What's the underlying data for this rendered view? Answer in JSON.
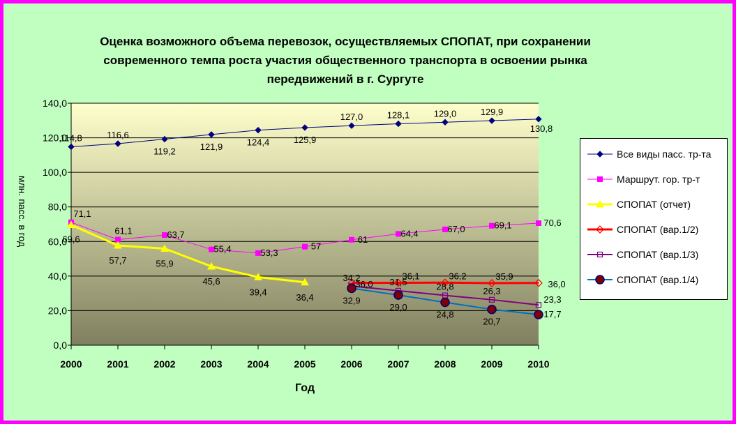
{
  "title_lines": [
    "Оценка возможного объема перевозок, осуществляемых СПОПАТ, при сохранении",
    "современного темпа роста участия общественного транспорта в освоении рынка",
    "передвижений в г. Сургуте"
  ],
  "colors": {
    "border": "#ff00ff",
    "chart_bg": "#c0ffc0",
    "plot_top": "#ffffcc",
    "plot_bottom": "#808060"
  },
  "chart_data": {
    "type": "line",
    "xlabel": "Год",
    "ylabel": "млн. пасс. в год",
    "ylim": [
      0,
      140
    ],
    "yticks": [
      "0,0",
      "20,0",
      "40,0",
      "60,0",
      "80,0",
      "100,0",
      "120,0",
      "140,0"
    ],
    "categories": [
      "2000",
      "2001",
      "2002",
      "2003",
      "2004",
      "2005",
      "2006",
      "2007",
      "2008",
      "2009",
      "2010"
    ],
    "grid": true,
    "legend_position": "right",
    "series": [
      {
        "name": "Все виды пасс. тр-та",
        "color": "#000080",
        "marker": "diamond",
        "width": 1,
        "values": [
          114.8,
          116.6,
          119.2,
          121.9,
          124.4,
          125.9,
          127.0,
          128.1,
          129.0,
          129.9,
          130.8
        ],
        "labels": [
          "114,8",
          "116,6",
          "119,2",
          "121,9",
          "124,4",
          "125,9",
          "127,0",
          "128,1",
          "129,0",
          "129,9",
          "130,8"
        ]
      },
      {
        "name": "Маршрут. гор. тр-т",
        "color": "#ff00ff",
        "marker": "square",
        "width": 1,
        "values": [
          71.1,
          61.1,
          63.7,
          55.4,
          53.3,
          57.0,
          61.0,
          64.4,
          67.0,
          69.1,
          70.6
        ],
        "labels": [
          "71,1",
          "61,1",
          "63,7",
          "55,4",
          "53,3",
          "57",
          "61",
          "64,4",
          "67,0",
          "69,1",
          "70,6"
        ]
      },
      {
        "name": "СПОПАТ (отчет)",
        "color": "#ffff00",
        "marker": "triangle",
        "width": 3,
        "values": [
          69.6,
          57.7,
          55.9,
          45.6,
          39.4,
          36.4,
          null,
          null,
          null,
          null,
          null
        ],
        "labels": [
          "69,6",
          "57,7",
          "55,9",
          "45,6",
          "39,4",
          "36,4",
          "",
          "",
          "",
          "",
          ""
        ]
      },
      {
        "name": "СПОПАТ (вар.1/2)",
        "color": "#ff0000",
        "marker": "open-diamond",
        "width": 3,
        "values": [
          null,
          null,
          null,
          null,
          null,
          null,
          36.0,
          36.1,
          36.2,
          35.9,
          36.0
        ],
        "labels": [
          "",
          "",
          "",
          "",
          "",
          "",
          "36,0",
          "36,1",
          "36,2",
          "35,9",
          "36,0"
        ]
      },
      {
        "name": "СПОПАТ (вар.1/3)",
        "color": "#800080",
        "marker": "open-square",
        "width": 2,
        "values": [
          null,
          null,
          null,
          null,
          null,
          null,
          34.2,
          31.5,
          28.8,
          26.3,
          23.3
        ],
        "labels": [
          "",
          "",
          "",
          "",
          "",
          "",
          "34,2",
          "31,5",
          "28,8",
          "26,3",
          "23,3"
        ]
      },
      {
        "name": "СПОПАТ (вар.1/4)",
        "color": "#0070c0",
        "marker": "circle",
        "width": 2,
        "values": [
          null,
          null,
          null,
          null,
          null,
          null,
          32.9,
          29.0,
          24.8,
          20.7,
          17.7
        ],
        "labels": [
          "",
          "",
          "",
          "",
          "",
          "",
          "32,9",
          "29,0",
          "24,8",
          "20,7",
          "17,7"
        ]
      }
    ]
  }
}
